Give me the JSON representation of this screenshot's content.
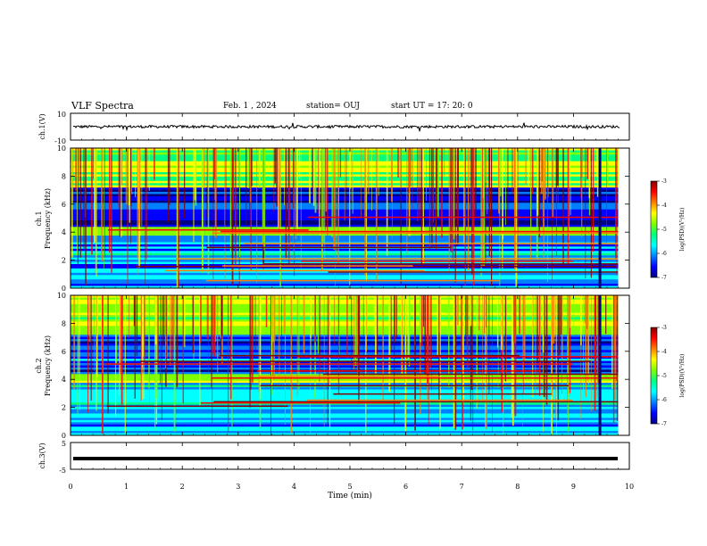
{
  "header": {
    "title": "VLF Spectra",
    "date": "Feb. 1 , 2024",
    "station": "station= OUJ",
    "start_ut": "start  UT =   17: 20: 0"
  },
  "colors": {
    "trace": "#000000",
    "colormap": [
      "#000080",
      "#0000ff",
      "#0080ff",
      "#00ffff",
      "#00ff80",
      "#80ff00",
      "#ffff00",
      "#ff8000",
      "#ff0000",
      "#800000"
    ]
  },
  "chart_data": [
    {
      "type": "line",
      "ylabel": "ch.1(V)",
      "ylim": [
        -10,
        10
      ],
      "y_ticks": [
        "10",
        "-10"
      ],
      "baseline": 0,
      "description_values": {
        "noise_amplitude": 1.0
      },
      "x_ticks": []
    },
    {
      "type": "heatmap",
      "ylabel": "ch.1\nFrequency (kHz)",
      "ylabel_lines": [
        "ch.1",
        "Frequency (kHz)"
      ],
      "ylim": [
        0,
        10
      ],
      "y_ticks": [
        "0",
        "2",
        "4",
        "6",
        "8",
        "10"
      ],
      "data_end_min": 9.8,
      "colorbar": {
        "label": "log(PSD)(V²/Hz)",
        "range": [
          -7,
          -3
        ],
        "ticks": [
          "-3",
          "-4",
          "-5",
          "-6",
          "-7"
        ]
      }
    },
    {
      "type": "heatmap",
      "ylabel": "ch.2\nFrequency (kHz)",
      "ylabel_lines": [
        "ch.2",
        "Frequency (kHz)"
      ],
      "ylim": [
        0,
        10
      ],
      "y_ticks": [
        "0",
        "2",
        "4",
        "6",
        "8",
        "10"
      ],
      "data_end_min": 9.8,
      "colorbar": {
        "label": "log(PSD)(V²/Hz)",
        "range": [
          -7,
          -3
        ],
        "ticks": [
          "-3",
          "-4",
          "-5",
          "-6",
          "-7"
        ]
      }
    },
    {
      "type": "line",
      "ylabel": "ch.3(V)",
      "ylim": [
        -5,
        5
      ],
      "y_ticks": [
        "5",
        "-5"
      ],
      "baseline": -1,
      "xlabel": "Time  (min)",
      "xlim": [
        0,
        10
      ],
      "x_ticks": [
        "0",
        "1",
        "2",
        "3",
        "4",
        "5",
        "6",
        "7",
        "8",
        "9",
        "10"
      ]
    }
  ]
}
